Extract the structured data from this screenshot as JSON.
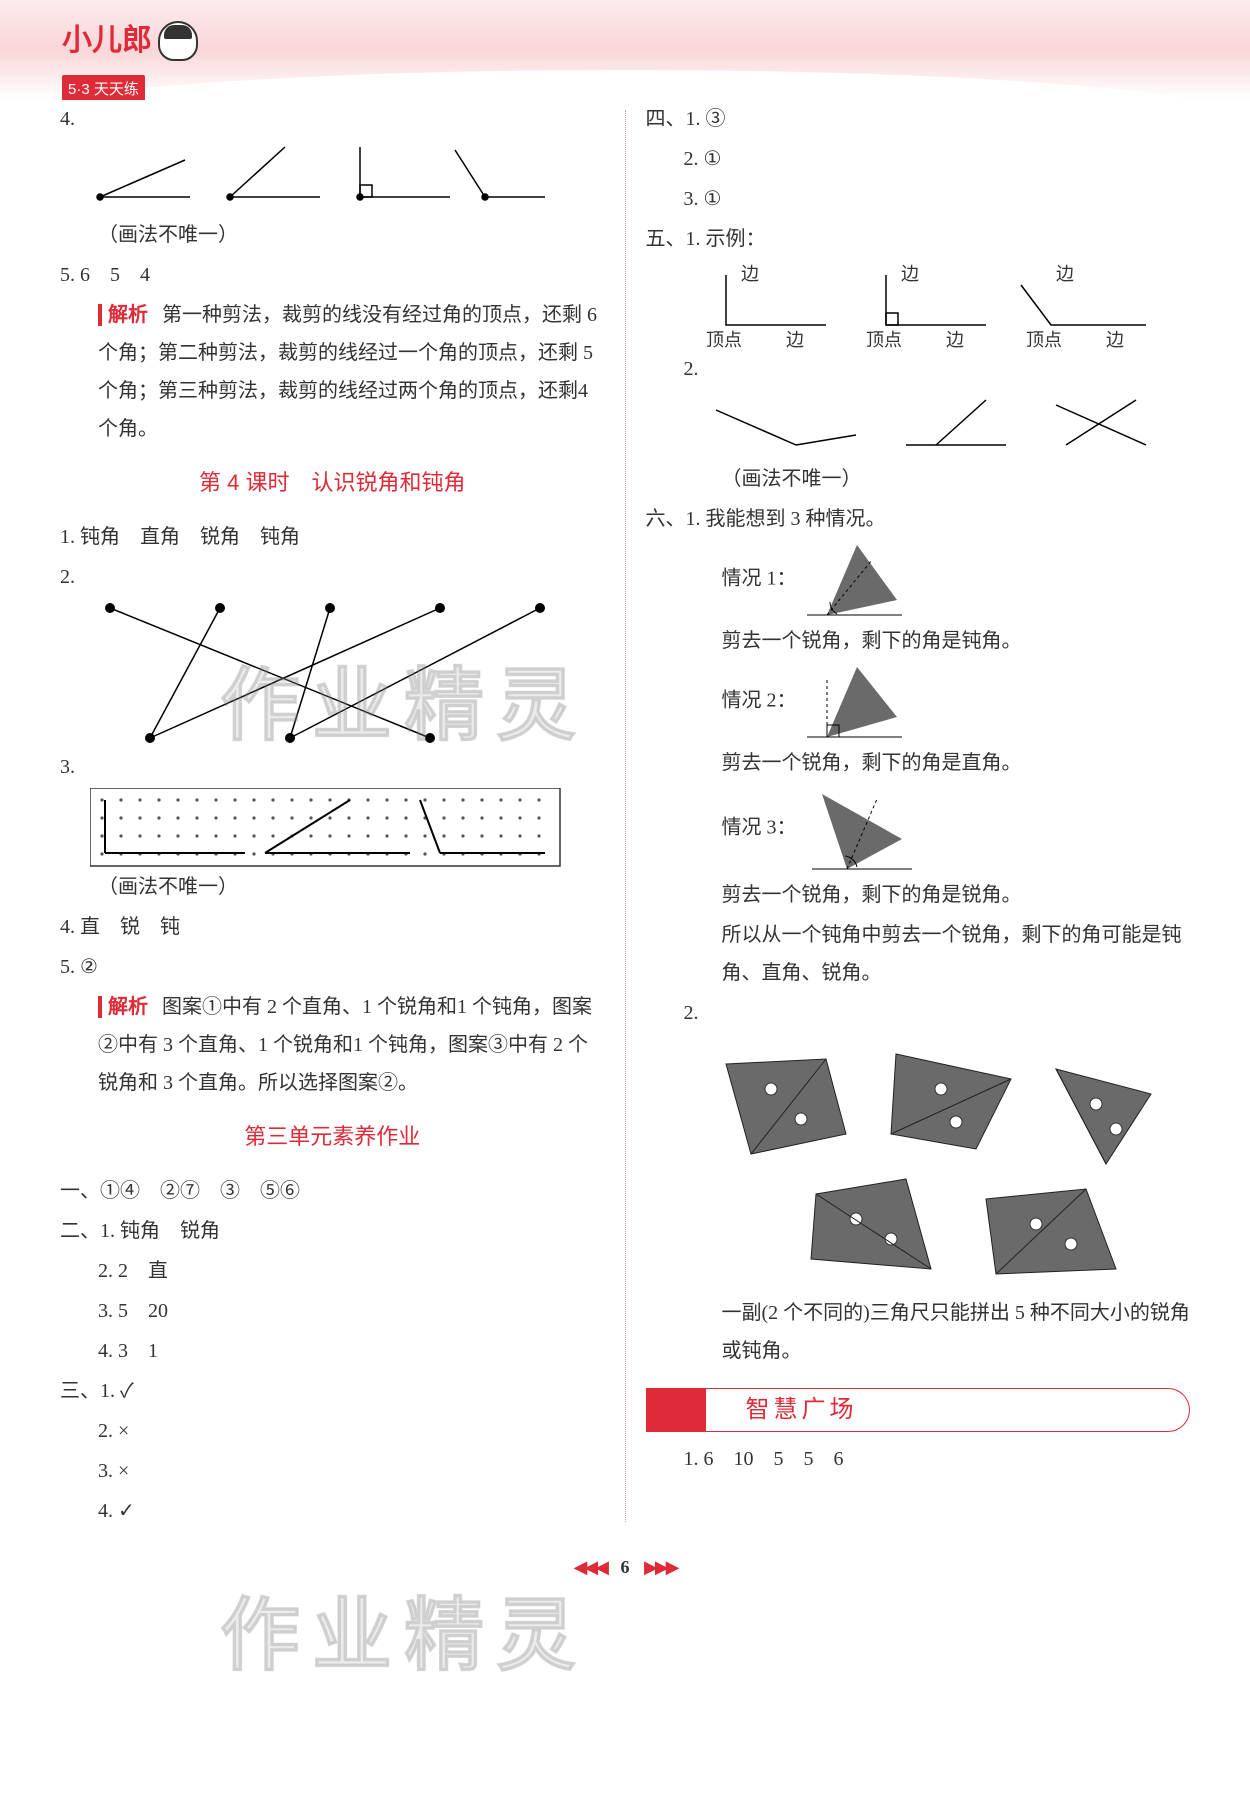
{
  "header": {
    "logo_title": "小儿郎",
    "logo_sub": "5·3 天天练"
  },
  "left": {
    "q4": "4.",
    "q4_note": "（画法不唯一）",
    "q5": "5. 6　5　4",
    "analysis_label": "解析",
    "q5_analysis": "第一种剪法，裁剪的线没有经过角的顶点，还剩 6 个角；第二种剪法，裁剪的线经过一个角的顶点，还剩 5 个角；第三种剪法，裁剪的线经过两个角的顶点，还剩4 个角。",
    "lesson4_title": "第 4 课时　认识锐角和钝角",
    "l4_q1": "1. 钝角　直角　锐角　钝角",
    "l4_q2": "2.",
    "l4_q3": "3.",
    "l4_q3_note": "（画法不唯一）",
    "l4_q4": "4. 直　锐　钝",
    "l4_q5": "5. ②",
    "l4_q5_analysis": "图案①中有 2 个直角、1 个锐角和1 个钝角，图案②中有 3 个直角、1 个锐角和1 个钝角，图案③中有 2 个锐角和 3 个直角。所以选择图案②。",
    "unit3_title": "第三单元素养作业",
    "u3_1": "一、①④　②⑦　③　⑤⑥",
    "u3_2_1": "二、1. 钝角　锐角",
    "u3_2_2": "2. 2　直",
    "u3_2_3": "3. 5　20",
    "u3_2_4": "4. 3　1",
    "u3_3_1": "三、1. ✓",
    "u3_3_2": "2. ×",
    "u3_3_3": "3. ×",
    "u3_3_4": "4. ✓"
  },
  "right": {
    "u3_4_1": "四、1. ③",
    "u3_4_2": "2. ①",
    "u3_4_3": "3. ①",
    "u3_5_1": "五、1. 示例：",
    "lbl_side": "边",
    "lbl_vertex_side": "顶点 边",
    "u3_5_2": "2.",
    "u3_5_note": "（画法不唯一）",
    "u3_6_1": "六、1. 我能想到 3 种情况。",
    "case1": "情况 1：",
    "case1_text": "剪去一个锐角，剩下的角是钝角。",
    "case2": "情况 2：",
    "case2_text": "剪去一个锐角，剩下的角是直角。",
    "case3": "情况 3：",
    "case3_text": "剪去一个锐角，剩下的角是锐角。",
    "conclusion": "所以从一个钝角中剪去一个锐角，剩下的角可能是钝角、直角、锐角。",
    "u3_6_2": "2.",
    "u3_6_2_text": "一副(2 个不同的)三角尺只能拼出 5 种不同大小的锐角或钝角。",
    "wisdom_title": "智慧广场",
    "w_q1": "1. 6　10　5　5　6"
  },
  "footer": {
    "page_number": "6"
  },
  "watermark_text": "作业精灵",
  "colors": {
    "accent": "#de2b37",
    "header_bg": "#fad6d8",
    "triangle_fill": "#6a6a6a",
    "dot_grid": "#555"
  }
}
